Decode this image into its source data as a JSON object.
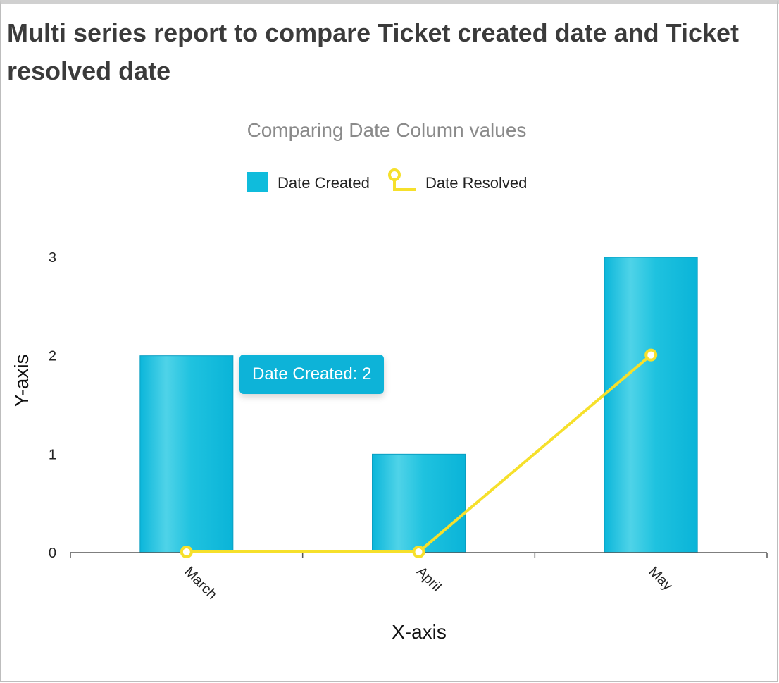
{
  "report": {
    "title": "Multi series report to compare Ticket created date and Ticket resolved date"
  },
  "chart_data": {
    "type": "bar",
    "title": "Comparing Date Column values",
    "xlabel": "X-axis",
    "ylabel": "Y-axis",
    "categories": [
      "March",
      "April",
      "May"
    ],
    "ylim": [
      0,
      3
    ],
    "yticks": [
      0,
      1,
      2,
      3
    ],
    "series": [
      {
        "name": "Date Created",
        "type": "bar",
        "color": "#0fbcdc",
        "values": [
          2,
          1,
          3
        ]
      },
      {
        "name": "Date Resolved",
        "type": "line",
        "color": "#f6e02b",
        "values": [
          0,
          0,
          2
        ]
      }
    ],
    "legend": "top-center",
    "grid": false,
    "tooltip": {
      "text": "Date Created: 2"
    }
  }
}
